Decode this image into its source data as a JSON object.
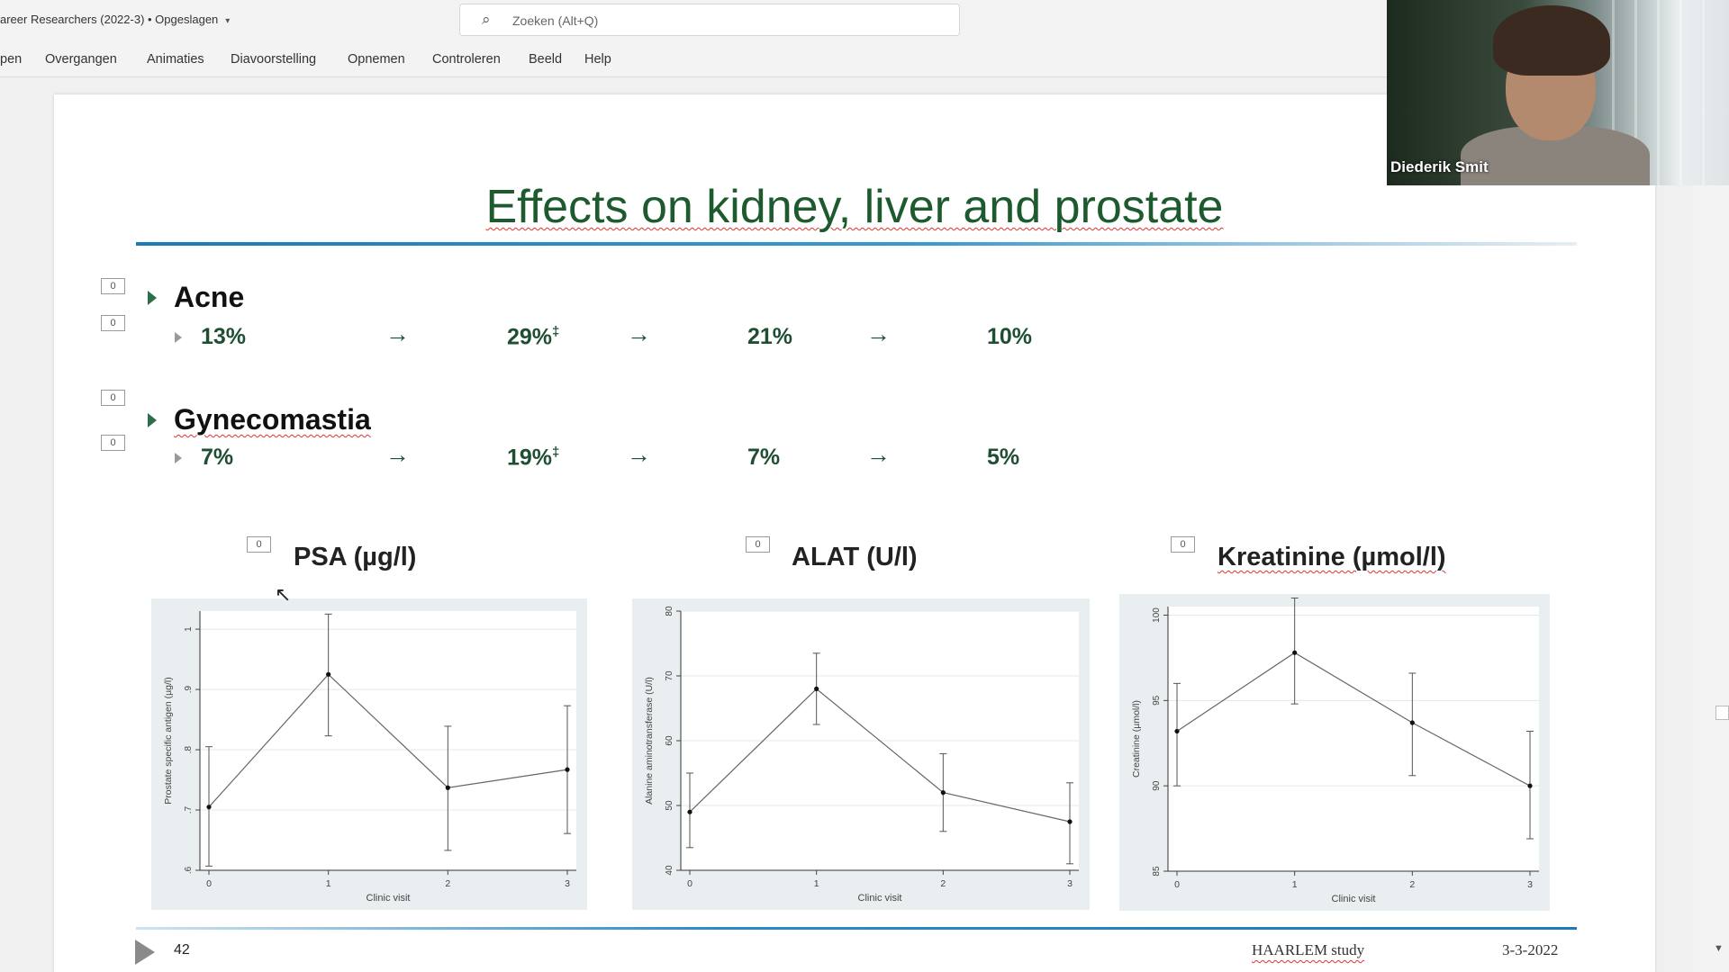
{
  "window": {
    "doc_title": "areer Researchers (2022-3) • Opgeslagen",
    "search_placeholder": "Zoeken (Alt+Q)",
    "ribbon_tabs": [
      "pen",
      "Overgangen",
      "Animaties",
      "Diavoorstelling",
      "Opnemen",
      "Controleren",
      "Beeld",
      "Help"
    ]
  },
  "slide": {
    "title": "Effects on kidney, liver and prostate",
    "placeholder_tag": "0",
    "bullets": [
      {
        "heading": "Acne",
        "values": [
          "13%",
          "29%",
          "21%",
          "10%"
        ],
        "sup": [
          "",
          "‡",
          "",
          ""
        ]
      },
      {
        "heading": "Gynecomastia",
        "values": [
          "7%",
          "19%",
          "7%",
          "5%"
        ],
        "sup": [
          "",
          "‡",
          "",
          ""
        ]
      }
    ],
    "arrow_glyph": "→",
    "footer": {
      "slide_number": "42",
      "study": "HAARLEM study",
      "date": "3-3-2022"
    }
  },
  "video": {
    "participant_name": "Diederik Smit"
  },
  "accent_colors": {
    "title_green": "#1d5a2e",
    "rule_blue": "#1a7bb5",
    "pct_green": "#1e4f33"
  },
  "chart_data": [
    {
      "type": "line",
      "title": "PSA (µg/l)",
      "xlabel": "Clinic visit",
      "ylabel": "Prostate specific antigen (µg/l)",
      "x": [
        0,
        1,
        2,
        3
      ],
      "y": [
        0.705,
        0.925,
        0.737,
        0.767
      ],
      "err_low": [
        0.607,
        0.823,
        0.633,
        0.661
      ],
      "err_high": [
        0.805,
        1.025,
        0.839,
        0.873
      ],
      "xlim": [
        0,
        3
      ],
      "ylim": [
        0.6,
        1.03
      ],
      "yticks": [
        0.6,
        0.7,
        0.8,
        0.9,
        1
      ],
      "ytick_labels": [
        ".6",
        ".7",
        ".8",
        ".9",
        "1"
      ],
      "xticks": [
        0,
        1,
        2,
        3
      ],
      "grid": true
    },
    {
      "type": "line",
      "title": "ALAT (U/l)",
      "xlabel": "Clinic visit",
      "ylabel": "Alanine aminotransferase (U/l)",
      "x": [
        0,
        1,
        2,
        3
      ],
      "y": [
        49,
        68,
        52,
        47.5
      ],
      "err_low": [
        43.5,
        62.5,
        46,
        41
      ],
      "err_high": [
        55,
        73.5,
        58,
        53.5
      ],
      "xlim": [
        0,
        3
      ],
      "ylim": [
        40,
        80
      ],
      "yticks": [
        40,
        50,
        60,
        70,
        80
      ],
      "ytick_labels": [
        "40",
        "50",
        "60",
        "70",
        "80"
      ],
      "xticks": [
        0,
        1,
        2,
        3
      ],
      "grid": true
    },
    {
      "type": "line",
      "title": "Kreatinine (µmol/l)",
      "xlabel": "Clinic visit",
      "ylabel": "Creatinine (µmol/l)",
      "x": [
        0,
        1,
        2,
        3
      ],
      "y": [
        93.2,
        97.8,
        93.7,
        90
      ],
      "err_low": [
        90,
        94.8,
        90.6,
        86.9
      ],
      "err_high": [
        96,
        101,
        96.6,
        93.2
      ],
      "xlim": [
        0,
        3
      ],
      "ylim": [
        85,
        100.5
      ],
      "yticks": [
        85,
        90,
        95,
        100
      ],
      "ytick_labels": [
        "85",
        "90",
        "95",
        "100"
      ],
      "xticks": [
        0,
        1,
        2,
        3
      ],
      "grid": true
    }
  ]
}
